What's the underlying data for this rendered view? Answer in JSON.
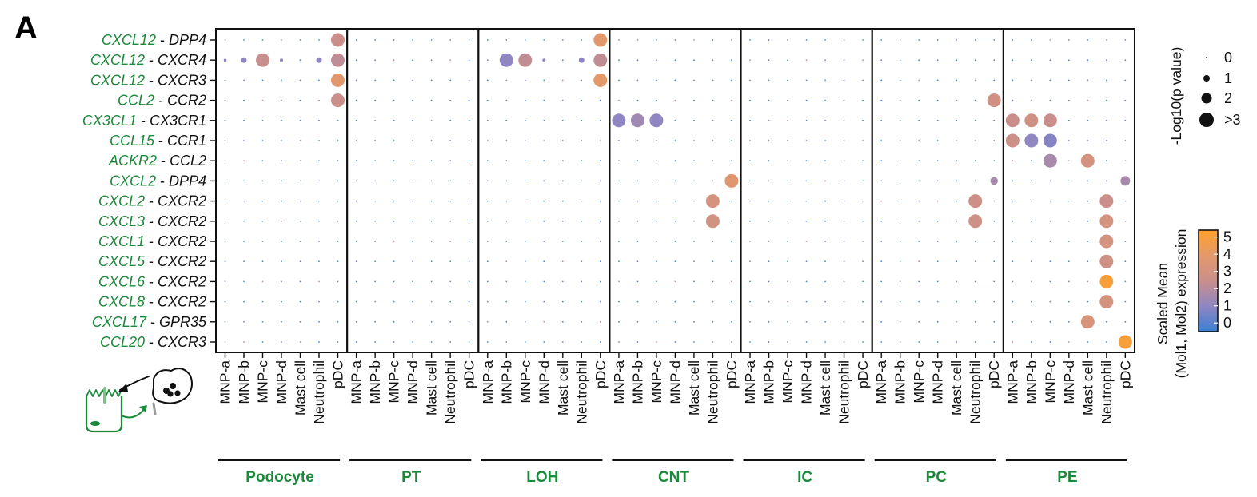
{
  "panel_label": "A",
  "chart_data": {
    "type": "scatter",
    "subtype": "dot-plot",
    "pairs": [
      {
        "ligand": "CXCL12",
        "receptor": "DPP4"
      },
      {
        "ligand": "CXCL12",
        "receptor": "CXCR4"
      },
      {
        "ligand": "CXCL12",
        "receptor": "CXCR3"
      },
      {
        "ligand": "CCL2",
        "receptor": "CCR2"
      },
      {
        "ligand": "CX3CL1",
        "receptor": "CX3CR1"
      },
      {
        "ligand": "CCL15",
        "receptor": "CCR1"
      },
      {
        "ligand": "ACKR2",
        "receptor": "CCL2"
      },
      {
        "ligand": "CXCL2",
        "receptor": "DPP4"
      },
      {
        "ligand": "CXCL2",
        "receptor": "CXCR2"
      },
      {
        "ligand": "CXCL3",
        "receptor": "CXCR2"
      },
      {
        "ligand": "CXCL1",
        "receptor": "CXCR2"
      },
      {
        "ligand": "CXCL5",
        "receptor": "CXCR2"
      },
      {
        "ligand": "CXCL6",
        "receptor": "CXCR2"
      },
      {
        "ligand": "CXCL8",
        "receptor": "CXCR2"
      },
      {
        "ligand": "CXCL17",
        "receptor": "GPR35"
      },
      {
        "ligand": "CCL20",
        "receptor": "CXCR3"
      }
    ],
    "pair_separator": " - ",
    "immune_cells": [
      "MNP-a",
      "MNP-b",
      "MNP-c",
      "MNP-d",
      "Mast cell",
      "Neutrophil",
      "pDC"
    ],
    "groups": [
      "Podocyte",
      "PT",
      "LOH",
      "CNT",
      "IC",
      "PC",
      "PE"
    ],
    "size_legend": {
      "title": "-Log10(p value)",
      "labels": [
        "0",
        "1",
        "2",
        ">3"
      ],
      "values": [
        0,
        1,
        2,
        3
      ]
    },
    "color_legend": {
      "title_line1": "Scaled Mean",
      "title_line2": "(Mol1, Mol2) expression",
      "ticks": [
        "0",
        "1",
        "2",
        "3",
        "4",
        "5"
      ],
      "range": [
        -0.5,
        5.4
      ],
      "colors": [
        "#3b7fd4",
        "#8f86c2",
        "#c98f8b",
        "#e4996a",
        "#ffa12b"
      ]
    },
    "points": [
      {
        "pair": 0,
        "group": 0,
        "cell": 6,
        "neglog10p": 3,
        "mean": 2.5
      },
      {
        "pair": 0,
        "group": 2,
        "cell": 6,
        "neglog10p": 3,
        "mean": 3.8
      },
      {
        "pair": 1,
        "group": 0,
        "cell": 0,
        "neglog10p": 0.3,
        "mean": 0.8
      },
      {
        "pair": 1,
        "group": 0,
        "cell": 1,
        "neglog10p": 1,
        "mean": 1.0
      },
      {
        "pair": 1,
        "group": 0,
        "cell": 2,
        "neglog10p": 3,
        "mean": 2.4
      },
      {
        "pair": 1,
        "group": 0,
        "cell": 3,
        "neglog10p": 0.4,
        "mean": 1.0
      },
      {
        "pair": 1,
        "group": 0,
        "cell": 5,
        "neglog10p": 1,
        "mean": 1.0
      },
      {
        "pair": 1,
        "group": 0,
        "cell": 6,
        "neglog10p": 3,
        "mean": 2.2
      },
      {
        "pair": 1,
        "group": 2,
        "cell": 1,
        "neglog10p": 3,
        "mean": 1.0
      },
      {
        "pair": 1,
        "group": 2,
        "cell": 2,
        "neglog10p": 3,
        "mean": 2.2
      },
      {
        "pair": 1,
        "group": 2,
        "cell": 3,
        "neglog10p": 0.4,
        "mean": 1.0
      },
      {
        "pair": 1,
        "group": 2,
        "cell": 5,
        "neglog10p": 1,
        "mean": 1.0
      },
      {
        "pair": 1,
        "group": 2,
        "cell": 6,
        "neglog10p": 3,
        "mean": 2.2
      },
      {
        "pair": 2,
        "group": 0,
        "cell": 6,
        "neglog10p": 3,
        "mean": 3.8
      },
      {
        "pair": 2,
        "group": 2,
        "cell": 6,
        "neglog10p": 3,
        "mean": 3.9
      },
      {
        "pair": 3,
        "group": 0,
        "cell": 6,
        "neglog10p": 3,
        "mean": 2.5
      },
      {
        "pair": 3,
        "group": 5,
        "cell": 6,
        "neglog10p": 3,
        "mean": 2.8
      },
      {
        "pair": 4,
        "group": 3,
        "cell": 0,
        "neglog10p": 3,
        "mean": 1.0
      },
      {
        "pair": 4,
        "group": 3,
        "cell": 1,
        "neglog10p": 3,
        "mean": 1.4
      },
      {
        "pair": 4,
        "group": 3,
        "cell": 2,
        "neglog10p": 3,
        "mean": 1.0
      },
      {
        "pair": 4,
        "group": 6,
        "cell": 0,
        "neglog10p": 3,
        "mean": 2.5
      },
      {
        "pair": 4,
        "group": 6,
        "cell": 1,
        "neglog10p": 3,
        "mean": 2.8
      },
      {
        "pair": 4,
        "group": 6,
        "cell": 2,
        "neglog10p": 3,
        "mean": 2.5
      },
      {
        "pair": 5,
        "group": 6,
        "cell": 0,
        "neglog10p": 3,
        "mean": 2.6
      },
      {
        "pair": 5,
        "group": 6,
        "cell": 1,
        "neglog10p": 3,
        "mean": 1.0
      },
      {
        "pair": 5,
        "group": 6,
        "cell": 2,
        "neglog10p": 3,
        "mean": 0.8
      },
      {
        "pair": 6,
        "group": 6,
        "cell": 2,
        "neglog10p": 3,
        "mean": 1.6
      },
      {
        "pair": 6,
        "group": 6,
        "cell": 4,
        "neglog10p": 3,
        "mean": 3.0
      },
      {
        "pair": 7,
        "group": 3,
        "cell": 6,
        "neglog10p": 3,
        "mean": 3.7
      },
      {
        "pair": 7,
        "group": 5,
        "cell": 6,
        "neglog10p": 1.5,
        "mean": 1.6
      },
      {
        "pair": 7,
        "group": 6,
        "cell": 6,
        "neglog10p": 2,
        "mean": 1.6
      },
      {
        "pair": 8,
        "group": 3,
        "cell": 5,
        "neglog10p": 3,
        "mean": 3.0
      },
      {
        "pair": 8,
        "group": 5,
        "cell": 5,
        "neglog10p": 3,
        "mean": 2.6
      },
      {
        "pair": 8,
        "group": 6,
        "cell": 5,
        "neglog10p": 3,
        "mean": 2.5
      },
      {
        "pair": 9,
        "group": 3,
        "cell": 5,
        "neglog10p": 3,
        "mean": 2.9
      },
      {
        "pair": 9,
        "group": 5,
        "cell": 5,
        "neglog10p": 3,
        "mean": 2.7
      },
      {
        "pair": 9,
        "group": 6,
        "cell": 5,
        "neglog10p": 3,
        "mean": 3.0
      },
      {
        "pair": 10,
        "group": 6,
        "cell": 5,
        "neglog10p": 3,
        "mean": 3.0
      },
      {
        "pair": 11,
        "group": 6,
        "cell": 5,
        "neglog10p": 3,
        "mean": 2.8
      },
      {
        "pair": 12,
        "group": 6,
        "cell": 5,
        "neglog10p": 3,
        "mean": 5.0
      },
      {
        "pair": 13,
        "group": 6,
        "cell": 5,
        "neglog10p": 3,
        "mean": 3.0
      },
      {
        "pair": 14,
        "group": 6,
        "cell": 4,
        "neglog10p": 3,
        "mean": 3.2
      },
      {
        "pair": 15,
        "group": 6,
        "cell": 6,
        "neglog10p": 3,
        "mean": 5.0
      }
    ]
  }
}
